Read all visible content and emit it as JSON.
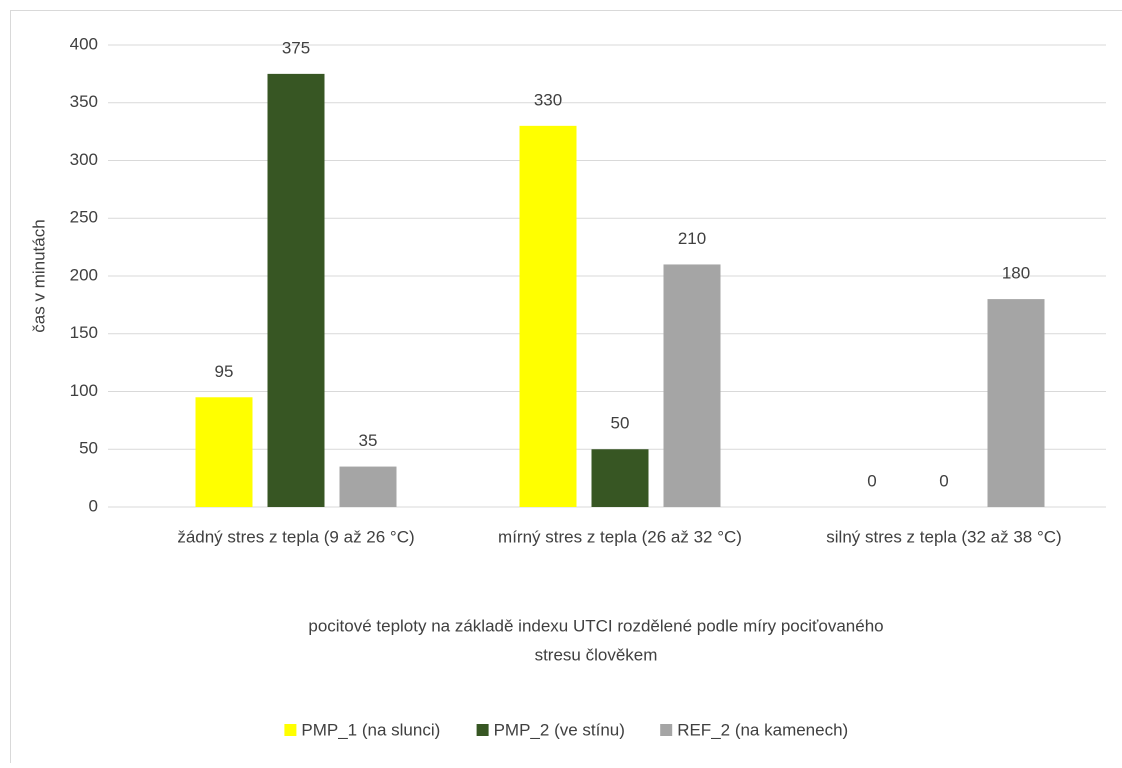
{
  "chart_data": {
    "type": "bar",
    "categories": [
      "žádný stres z tepla (9 až 26 °C)",
      "mírný stres z tepla (26 až 32 °C)",
      "silný stres z tepla (32 až 38 °C)"
    ],
    "series": [
      {
        "name": "PMP_1 (na slunci)",
        "color": "#ffff00",
        "values": [
          95,
          330,
          0
        ]
      },
      {
        "name": "PMP_2 (ve stínu)",
        "color": "#375623",
        "values": [
          375,
          50,
          0
        ]
      },
      {
        "name": "REF_2 (na kamenech)",
        "color": "#a5a5a5",
        "values": [
          35,
          210,
          180
        ]
      }
    ],
    "ylabel": "čas v minutách",
    "xlabel": [
      "pocitové teploty na základě indexu UTCI rozdělené podle míry pociťovaného",
      "stresu člověkem"
    ],
    "ylim": [
      0,
      400
    ],
    "yticks": [
      0,
      50,
      100,
      150,
      200,
      250,
      300,
      350,
      400
    ],
    "grid": true,
    "legend": "bottom"
  }
}
